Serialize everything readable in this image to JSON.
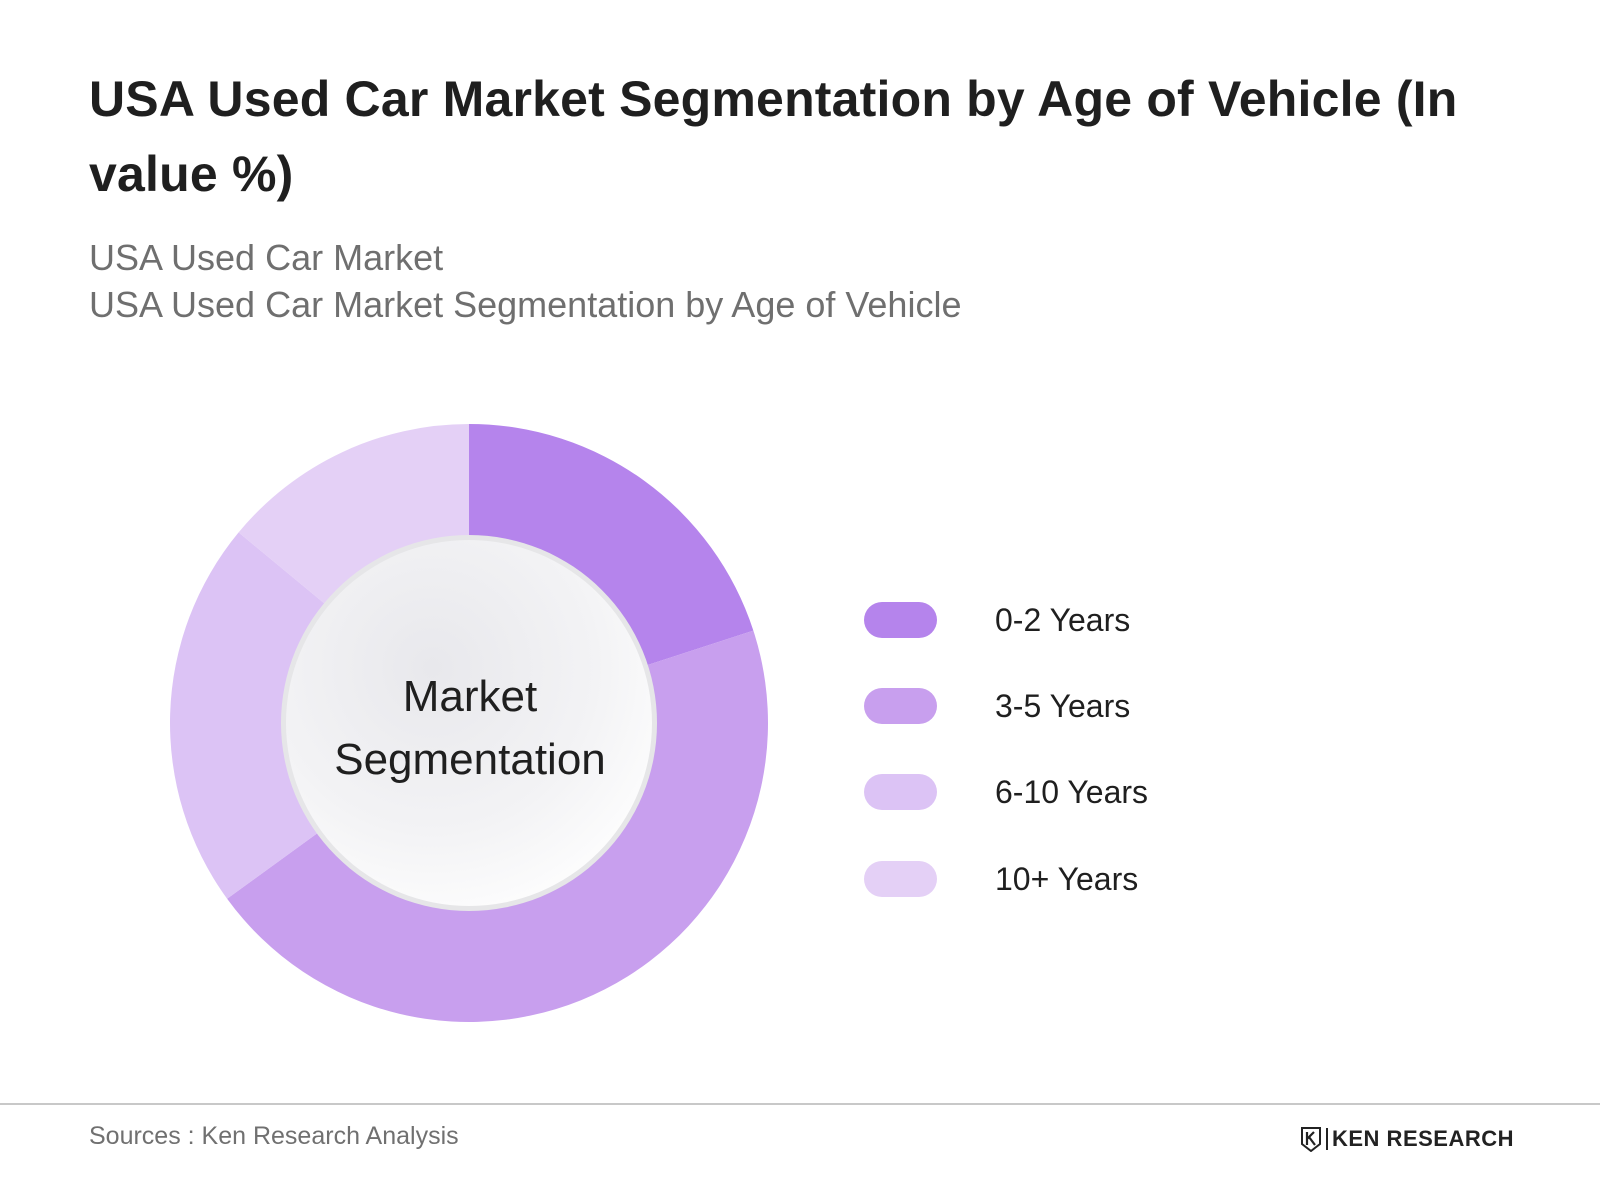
{
  "title": "USA Used Car  Market Segmentation by Age of Vehicle (In value %)",
  "subtitle_line1": "USA Used Car Market",
  "subtitle_line2": "USA Used Car  Market Segmentation by Age of Vehicle",
  "center_label": {
    "line1": "Market",
    "line2": "Segmentation"
  },
  "chart_data": {
    "type": "pie",
    "subtype": "donut",
    "title": "USA Used Car  Market Segmentation by Age of Vehicle (In value %)",
    "categories": [
      "0-2 Years",
      "3-5 Years",
      "6-10 Years",
      "10+ Years"
    ],
    "values": [
      20,
      45,
      21,
      14
    ],
    "unit": "%",
    "colors": [
      "#B584EC",
      "#C89FEE",
      "#DCC3F5",
      "#E4D0F6"
    ],
    "legend_position": "right"
  },
  "legend": [
    {
      "label": "0-2 Years",
      "color": "#B584EC"
    },
    {
      "label": "3-5 Years",
      "color": "#C89FEE"
    },
    {
      "label": "6-10 Years",
      "color": "#DCC3F5"
    },
    {
      "label": "10+ Years",
      "color": "#E4D0F6"
    }
  ],
  "footer": {
    "source": "Sources : Ken Research Analysis",
    "logo_text": "KEN RESEARCH",
    "logo_icon": "ken-research-k-icon"
  }
}
